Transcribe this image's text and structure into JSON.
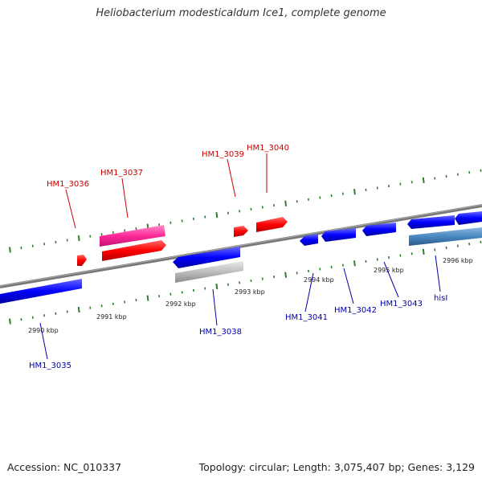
{
  "title": "Heliobacterium modesticaldum Ice1, complete genome",
  "footer": {
    "accession": "Accession: NC_010337",
    "topology": "Topology: circular; Length: 3,075,407 bp; Genes: 3,129"
  },
  "colors": {
    "forward_strand": "#ff0000",
    "forward_highlight": "#ff3aa0",
    "reverse_strand": "#0000ff",
    "reverse_highlight": "#4a86c0",
    "pseudo_gray": "#bdbdbd",
    "backbone": "#808080",
    "tick_green": "#2f7f2f",
    "label_red": "#cc0000",
    "label_blue": "#0000aa"
  },
  "scale": {
    "unit": "kbp",
    "ticks": [
      {
        "kbp": 2990,
        "label": "2990 kbp"
      },
      {
        "kbp": 2991,
        "label": "2991 kbp"
      },
      {
        "kbp": 2992,
        "label": "2992 kbp"
      },
      {
        "kbp": 2993,
        "label": "2993 kbp"
      },
      {
        "kbp": 2994,
        "label": "2994 kbp"
      },
      {
        "kbp": 2995,
        "label": "2995 kbp"
      },
      {
        "kbp": 2996,
        "label": "2996 kbp"
      }
    ]
  },
  "genes": [
    {
      "label": "HM1_3035",
      "strand": "-"
    },
    {
      "label": "HM1_3036",
      "strand": "+"
    },
    {
      "label": "HM1_3037",
      "strand": "+"
    },
    {
      "label": "HM1_3038",
      "strand": "-"
    },
    {
      "label": "HM1_3039",
      "strand": "+"
    },
    {
      "label": "HM1_3040",
      "strand": "+"
    },
    {
      "label": "HM1_3041",
      "strand": "-"
    },
    {
      "label": "HM1_3042",
      "strand": "-"
    },
    {
      "label": "HM1_3043",
      "strand": "-"
    },
    {
      "label": "hisI",
      "strand": "-"
    }
  ]
}
